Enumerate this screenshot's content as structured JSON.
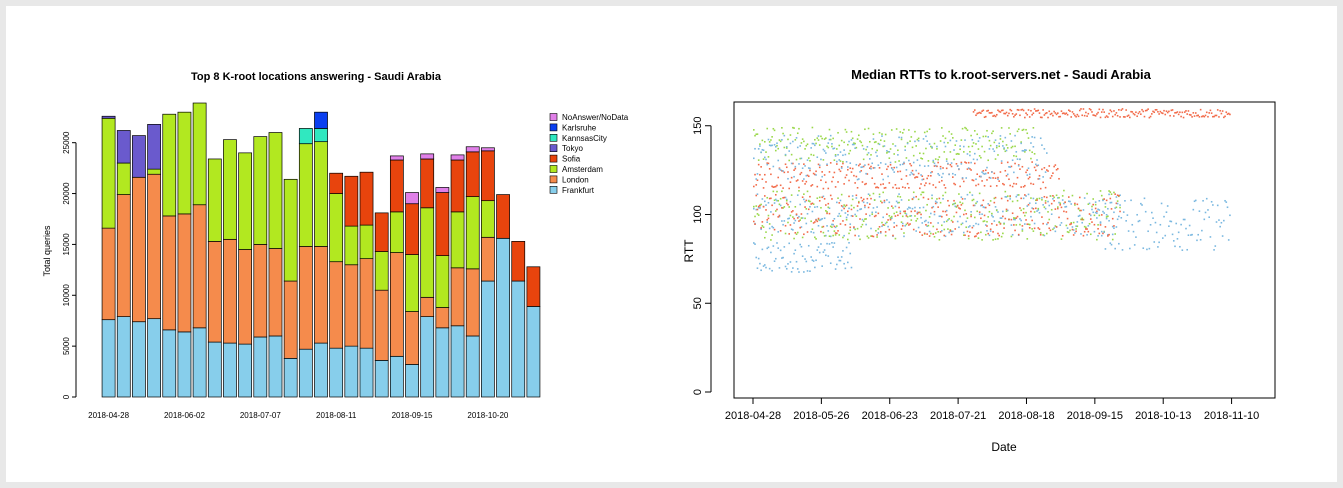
{
  "chart_data": [
    {
      "type": "bar",
      "stacked": true,
      "title": "Top 8 K-root locations answering - Saudi Arabia",
      "xlabel": "",
      "ylabel": "Total queries",
      "ylim": [
        0,
        29000
      ],
      "yticks": [
        0,
        5000,
        10000,
        15000,
        20000,
        25000
      ],
      "xtick_labels": [
        "2018-04-28",
        "2018-06-02",
        "2018-07-07",
        "2018-08-11",
        "2018-09-15",
        "2018-10-20"
      ],
      "xtick_index": [
        0,
        5,
        10,
        15,
        20,
        25
      ],
      "legend_position": "top-right",
      "legend": [
        "NoAnswer/NoData",
        "Karlsruhe",
        "KannsasCity",
        "Tokyo",
        "Sofia",
        "Amsterdam",
        "London",
        "Frankfurt"
      ],
      "series": [
        {
          "name": "Frankfurt",
          "color": "#87ceeb",
          "values": [
            7600,
            7900,
            7400,
            7700,
            6600,
            6400,
            6800,
            5400,
            5300,
            5200,
            5900,
            6000,
            3800,
            4700,
            5300,
            4800,
            5000,
            4800,
            3600,
            4000,
            3200,
            7900,
            6800,
            7000,
            6000,
            11400,
            15600,
            11400,
            8900
          ]
        },
        {
          "name": "London",
          "color": "#f58b4c",
          "values": [
            9000,
            12000,
            14200,
            14200,
            11200,
            11600,
            12100,
            9900,
            10200,
            9300,
            9100,
            8600,
            7600,
            10100,
            9500,
            8500,
            8000,
            8800,
            6900,
            10200,
            5200,
            1900,
            2000,
            5700,
            6600,
            4300,
            0,
            0,
            0
          ]
        },
        {
          "name": "Amsterdam",
          "color": "#b2e820",
          "values": [
            10800,
            3100,
            0,
            500,
            10000,
            10000,
            10000,
            8100,
            9800,
            9500,
            10600,
            11400,
            10000,
            10100,
            10300,
            6700,
            3800,
            3300,
            3800,
            4000,
            5600,
            8800,
            5100,
            5500,
            7100,
            3600,
            0,
            0,
            0
          ]
        },
        {
          "name": "Sofia",
          "color": "#e8440d",
          "values": [
            0,
            0,
            0,
            0,
            0,
            0,
            0,
            0,
            0,
            0,
            0,
            0,
            0,
            0,
            0,
            2000,
            4900,
            5200,
            3800,
            5100,
            5000,
            4800,
            6200,
            5100,
            4400,
            4900,
            4300,
            3900,
            3900
          ]
        },
        {
          "name": "Tokyo",
          "color": "#6a5acd",
          "values": [
            200,
            3200,
            4100,
            4400,
            0,
            0,
            0,
            0,
            0,
            0,
            0,
            0,
            0,
            0,
            0,
            0,
            0,
            0,
            0,
            0,
            0,
            0,
            0,
            0,
            0,
            0,
            0,
            0,
            0
          ]
        },
        {
          "name": "KannsasCity",
          "color": "#30e8c0",
          "values": [
            0,
            0,
            0,
            0,
            0,
            0,
            0,
            0,
            0,
            0,
            0,
            0,
            0,
            1500,
            1300,
            0,
            0,
            0,
            0,
            0,
            0,
            0,
            0,
            0,
            0,
            0,
            0,
            0,
            0
          ]
        },
        {
          "name": "Karlsruhe",
          "color": "#0a3ff0",
          "values": [
            0,
            0,
            0,
            0,
            0,
            0,
            0,
            0,
            0,
            0,
            0,
            0,
            0,
            0,
            1600,
            0,
            0,
            0,
            0,
            0,
            0,
            0,
            0,
            0,
            0,
            0,
            0,
            0,
            0
          ]
        },
        {
          "name": "NoAnswer/NoData",
          "color": "#e080e8",
          "values": [
            0,
            0,
            0,
            0,
            0,
            0,
            0,
            0,
            0,
            0,
            0,
            0,
            0,
            0,
            0,
            0,
            0,
            0,
            0,
            400,
            1100,
            500,
            500,
            500,
            500,
            300,
            0,
            0,
            0
          ]
        }
      ]
    },
    {
      "type": "scatter",
      "title": "Median RTTs to k.root-servers.net -  Saudi Arabia",
      "xlabel": "Date",
      "ylabel": "RTT",
      "ylim": [
        0,
        160
      ],
      "yticks": [
        0,
        50,
        100,
        150
      ],
      "xlim": [
        "2018-04-28",
        "2018-11-20"
      ],
      "xtick_labels": [
        "2018-04-28",
        "2018-05-26",
        "2018-06-23",
        "2018-07-21",
        "2018-08-18",
        "2018-09-15",
        "2018-10-13",
        "2018-11-10"
      ],
      "series_colors": [
        "#7ab8e0",
        "#f26b4a",
        "#9ad84a"
      ]
    }
  ]
}
